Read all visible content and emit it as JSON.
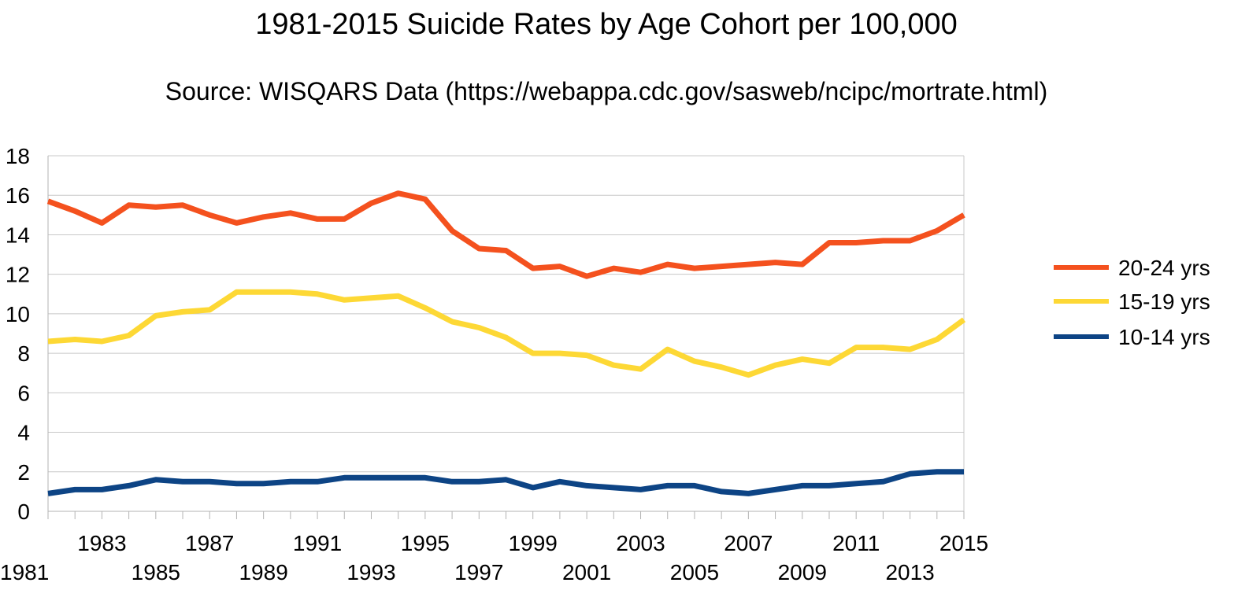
{
  "chart_data": {
    "type": "line",
    "title": "1981-2015 Suicide Rates by Age Cohort per 100,000",
    "subtitle": "Source: WISQARS Data (https://webappa.cdc.gov/sasweb/ncipc/mortrate.html)",
    "xlabel": "",
    "ylabel": "",
    "ylim": [
      0,
      18
    ],
    "yticks": [
      0,
      2,
      4,
      6,
      8,
      10,
      12,
      14,
      16,
      18
    ],
    "x": [
      1981,
      1982,
      1983,
      1984,
      1985,
      1986,
      1987,
      1988,
      1989,
      1990,
      1991,
      1992,
      1993,
      1994,
      1995,
      1996,
      1997,
      1998,
      1999,
      2000,
      2001,
      2002,
      2003,
      2004,
      2005,
      2006,
      2007,
      2008,
      2009,
      2010,
      2011,
      2012,
      2013,
      2014,
      2015
    ],
    "xticks": [
      "1981",
      "1983",
      "1985",
      "1987",
      "1989",
      "1991",
      "1993",
      "1995",
      "1997",
      "1999",
      "2001",
      "2003",
      "2005",
      "2007",
      "2009",
      "2011",
      "2013",
      "2015"
    ],
    "grid": true,
    "legend_position": "right",
    "series": [
      {
        "name": "20-24 yrs",
        "color": "#f4511e",
        "values": [
          15.7,
          15.2,
          14.6,
          15.5,
          15.4,
          15.5,
          15.0,
          14.6,
          14.9,
          15.1,
          14.8,
          14.8,
          15.6,
          16.1,
          15.8,
          14.2,
          13.3,
          13.2,
          12.3,
          12.4,
          11.9,
          12.3,
          12.1,
          12.5,
          12.3,
          12.4,
          12.5,
          12.6,
          12.5,
          13.6,
          13.6,
          13.7,
          13.7,
          14.2,
          15.0
        ]
      },
      {
        "name": "15-19 yrs",
        "color": "#fdd835",
        "values": [
          8.6,
          8.7,
          8.6,
          8.9,
          9.9,
          10.1,
          10.2,
          11.1,
          11.1,
          11.1,
          11.0,
          10.7,
          10.8,
          10.9,
          10.3,
          9.6,
          9.3,
          8.8,
          8.0,
          8.0,
          7.9,
          7.4,
          7.2,
          8.2,
          7.6,
          7.3,
          6.9,
          7.4,
          7.7,
          7.5,
          8.3,
          8.3,
          8.2,
          8.7,
          9.7
        ]
      },
      {
        "name": "10-14 yrs",
        "color": "#0d4485",
        "values": [
          0.9,
          1.1,
          1.1,
          1.3,
          1.6,
          1.5,
          1.5,
          1.4,
          1.4,
          1.5,
          1.5,
          1.7,
          1.7,
          1.7,
          1.7,
          1.5,
          1.5,
          1.6,
          1.2,
          1.5,
          1.3,
          1.2,
          1.1,
          1.3,
          1.3,
          1.0,
          0.9,
          1.1,
          1.3,
          1.3,
          1.4,
          1.5,
          1.9,
          2.0,
          2.0
        ]
      }
    ]
  }
}
